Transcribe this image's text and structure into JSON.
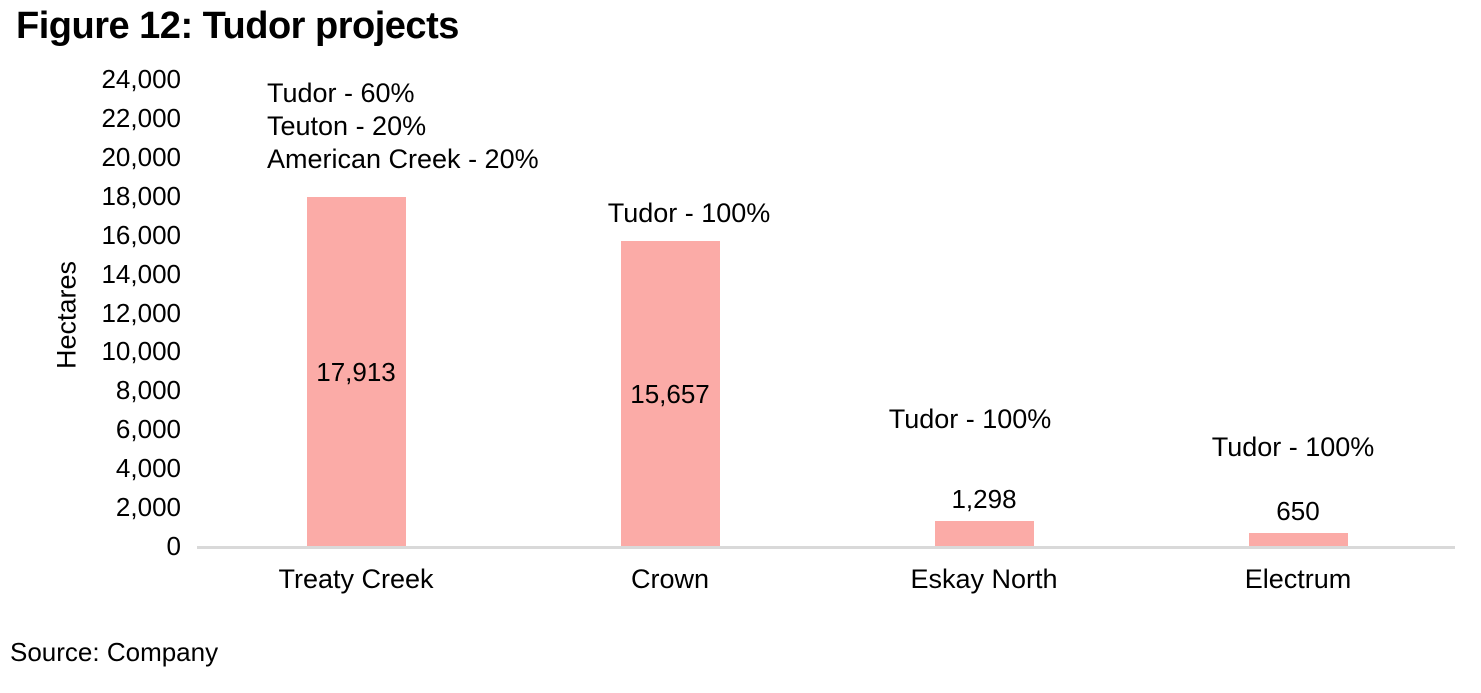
{
  "figure": {
    "title": "Figure 12: Tudor projects",
    "source": "Source: Company"
  },
  "chart_data": {
    "type": "bar",
    "title": "Figure 12: Tudor projects",
    "xlabel": "",
    "ylabel": "Hectares",
    "categories": [
      "Treaty Creek",
      "Crown",
      "Eskay North",
      "Electrum"
    ],
    "values": [
      17913,
      15657,
      1298,
      650
    ],
    "value_labels": [
      "17,913",
      "15,657",
      "1,298",
      "650"
    ],
    "value_label_placement": [
      "inside",
      "inside",
      "above",
      "above"
    ],
    "ylim": [
      0,
      24000
    ],
    "ytick_step": 2000,
    "ytick_labels": [
      "0",
      "2,000",
      "4,000",
      "6,000",
      "8,000",
      "10,000",
      "12,000",
      "14,000",
      "16,000",
      "18,000",
      "20,000",
      "22,000",
      "24,000"
    ],
    "grid": false,
    "legend": "none",
    "annotations": [
      {
        "category": "Treaty Creek",
        "lines": [
          "Tudor - 60%",
          "Teuton - 20%",
          "American Creek - 20%"
        ]
      },
      {
        "category": "Crown",
        "lines": [
          "Tudor - 100%"
        ]
      },
      {
        "category": "Eskay North",
        "lines": [
          "Tudor - 100%"
        ]
      },
      {
        "category": "Electrum",
        "lines": [
          "Tudor - 100%"
        ]
      }
    ],
    "bar_color": "#FBABA7",
    "axis_color": "#D9D9D9",
    "text_color": "#000000",
    "source": "Source: Company"
  }
}
